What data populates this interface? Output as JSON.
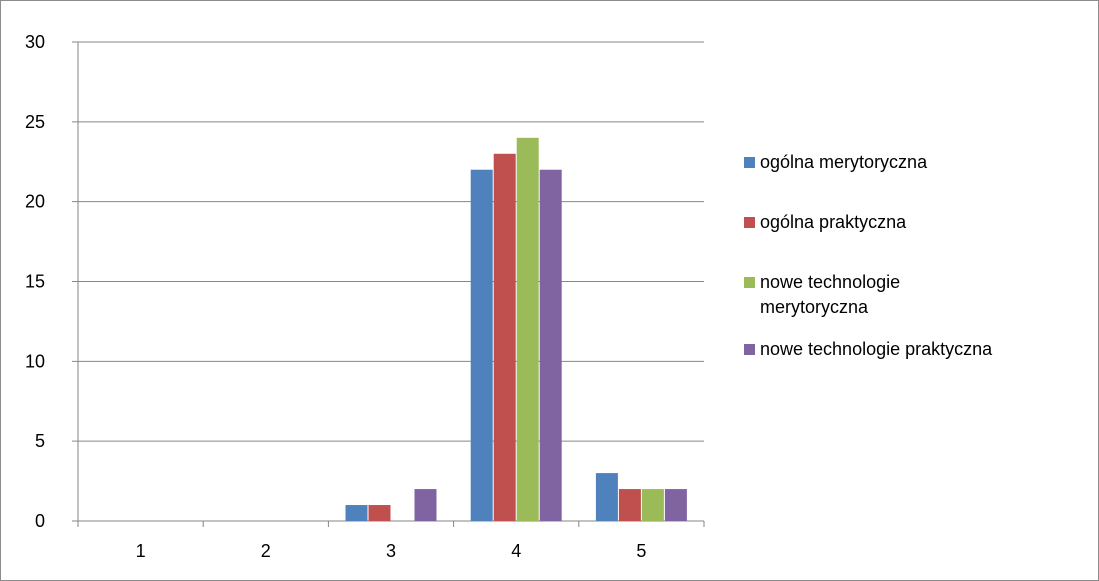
{
  "chart_data": {
    "type": "bar",
    "categories": [
      "1",
      "2",
      "3",
      "4",
      "5"
    ],
    "series": [
      {
        "name": "ogólna merytoryczna",
        "color": "#4f81bd",
        "values": [
          0,
          0,
          1,
          22,
          3
        ]
      },
      {
        "name": "ogólna praktyczna",
        "color": "#c0504d",
        "values": [
          0,
          0,
          1,
          23,
          2
        ]
      },
      {
        "name": "nowe technologie merytoryczna",
        "color": "#9bbb59",
        "values": [
          0,
          0,
          0,
          24,
          2
        ]
      },
      {
        "name": "nowe technologie praktyczna",
        "color": "#8064a2",
        "values": [
          0,
          0,
          2,
          22,
          2
        ]
      }
    ],
    "ylim": [
      0,
      30
    ],
    "yticks": [
      "0",
      "5",
      "10",
      "15",
      "20",
      "25",
      "30"
    ],
    "title": "",
    "xlabel": "",
    "ylabel": "",
    "grid": true,
    "legend_position": "right"
  }
}
